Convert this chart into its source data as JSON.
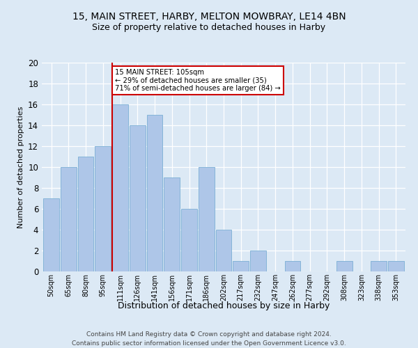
{
  "title": "15, MAIN STREET, HARBY, MELTON MOWBRAY, LE14 4BN",
  "subtitle": "Size of property relative to detached houses in Harby",
  "xlabel": "Distribution of detached houses by size in Harby",
  "ylabel": "Number of detached properties",
  "bin_labels": [
    "50sqm",
    "65sqm",
    "80sqm",
    "95sqm",
    "111sqm",
    "126sqm",
    "141sqm",
    "156sqm",
    "171sqm",
    "186sqm",
    "202sqm",
    "217sqm",
    "232sqm",
    "247sqm",
    "262sqm",
    "277sqm",
    "292sqm",
    "308sqm",
    "323sqm",
    "338sqm",
    "353sqm"
  ],
  "bar_heights": [
    7,
    10,
    11,
    12,
    16,
    14,
    15,
    9,
    6,
    10,
    4,
    1,
    2,
    0,
    1,
    0,
    0,
    1,
    0,
    1,
    1
  ],
  "bar_color": "#aec6e8",
  "bar_edge_color": "#7bafd4",
  "vline_bin_index": 4,
  "vline_color": "#cc0000",
  "annotation_text": "15 MAIN STREET: 105sqm\n← 29% of detached houses are smaller (35)\n71% of semi-detached houses are larger (84) →",
  "annotation_box_color": "#cc0000",
  "ylim": [
    0,
    20
  ],
  "yticks": [
    0,
    2,
    4,
    6,
    8,
    10,
    12,
    14,
    16,
    18,
    20
  ],
  "footer": "Contains HM Land Registry data © Crown copyright and database right 2024.\nContains public sector information licensed under the Open Government Licence v3.0.",
  "bg_color": "#dce9f5",
  "plot_bg_color": "#dce9f5",
  "grid_color": "#ffffff",
  "title_fontsize": 10,
  "subtitle_fontsize": 9
}
